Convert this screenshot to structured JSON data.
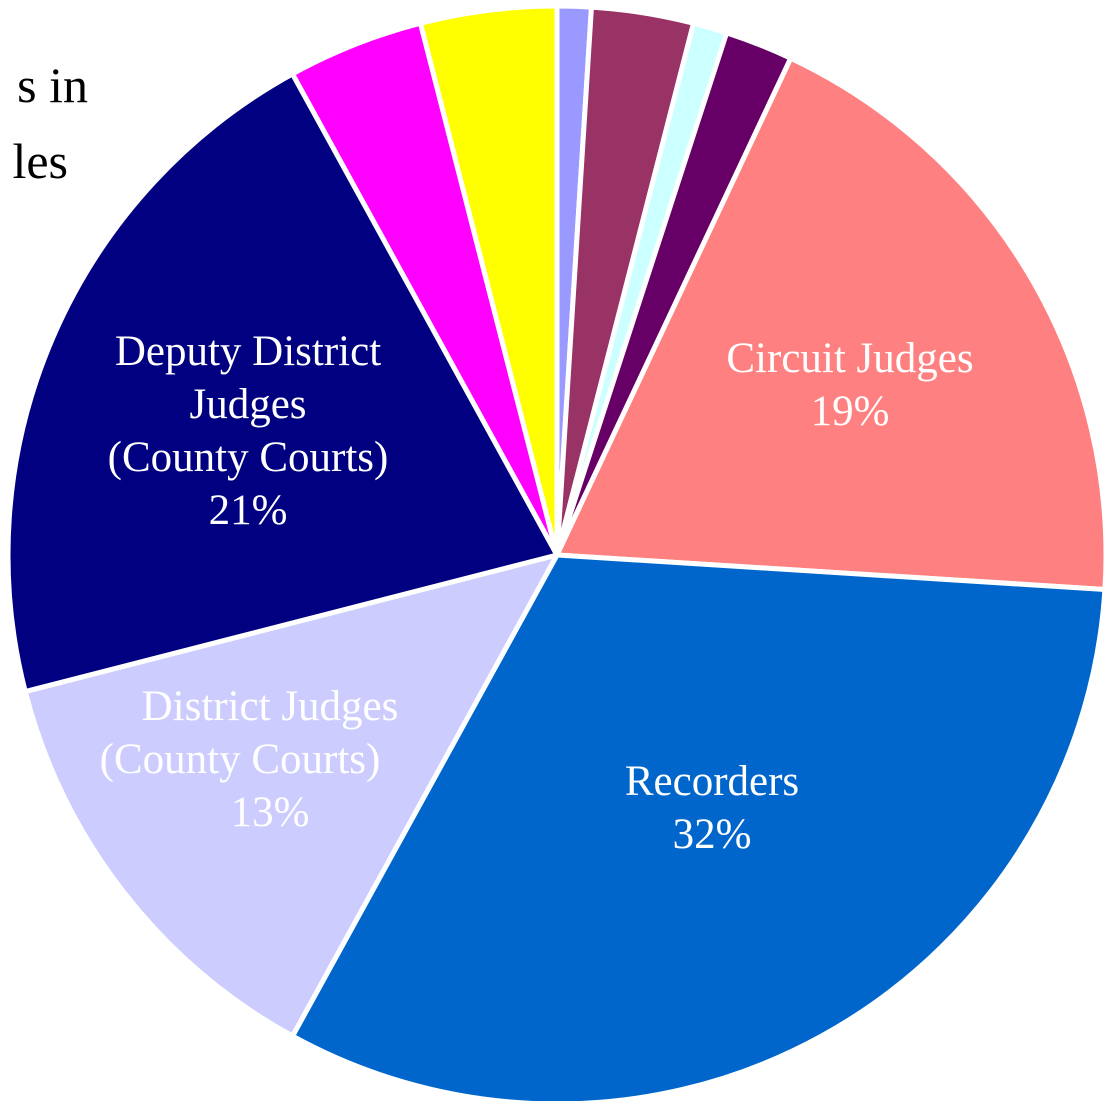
{
  "chart_data": {
    "type": "pie",
    "title_fragment": [
      "s in",
      "les"
    ],
    "slices": [
      {
        "label": "",
        "value": 1,
        "color": "#9999ff",
        "show_label": false
      },
      {
        "label": "",
        "value": 3,
        "color": "#993366",
        "show_label": false
      },
      {
        "label": "",
        "value": 1,
        "color": "#ccffff",
        "show_label": false
      },
      {
        "label": "",
        "value": 2,
        "color": "#660066",
        "show_label": false
      },
      {
        "label": "Circuit Judges",
        "value": 19,
        "percent_label": "19%",
        "color": "#ff8080",
        "text_color": "#ffffff",
        "show_label": true
      },
      {
        "label": "Recorders",
        "value": 32,
        "percent_label": "32%",
        "color": "#0066cc",
        "text_color": "#ffffff",
        "show_label": true
      },
      {
        "label": "District Judges (County Courts)",
        "value": 13,
        "percent_label": "13%",
        "color": "#ccccff",
        "text_color": "#ffffff",
        "show_label": true
      },
      {
        "label": "Deputy District Judges (County Courts)",
        "value": 21,
        "percent_label": "21%",
        "color": "#000080",
        "text_color": "#ffffff",
        "show_label": true
      },
      {
        "label": "",
        "value": 4,
        "color": "#ff00ff",
        "show_label": false
      },
      {
        "label": "",
        "value": 4,
        "color": "#ffff00",
        "show_label": false
      }
    ]
  }
}
